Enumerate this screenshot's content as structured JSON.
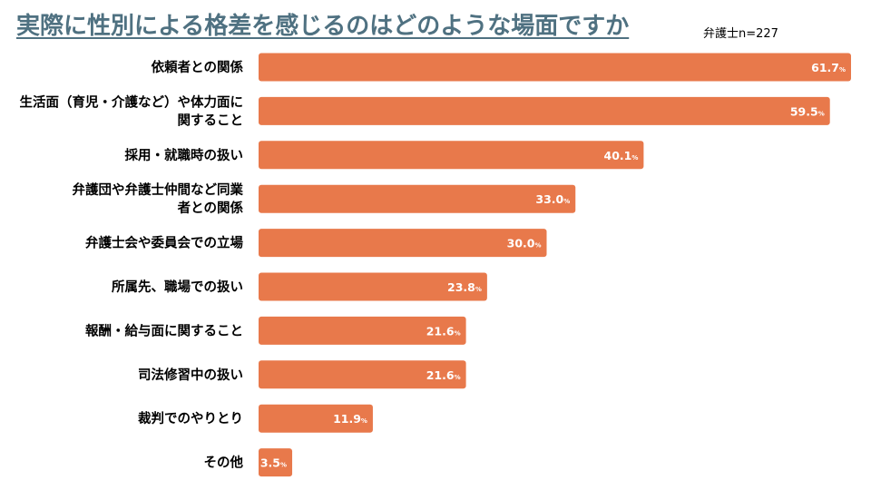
{
  "title": "実際に性別による格差を感じるのはどのような場面ですか",
  "sample_size": "弁護士n=227",
  "chart_data": {
    "type": "bar",
    "orientation": "horizontal",
    "categories": [
      [
        "依頼者との関係"
      ],
      [
        "生活面（育児・介護など）や体力面に",
        "関すること"
      ],
      [
        "採用・就職時の扱い"
      ],
      [
        "弁護団や弁護士仲間など同業",
        "者との関係"
      ],
      [
        "弁護士会や委員会での立場"
      ],
      [
        "所属先、職場での扱い"
      ],
      [
        "報酬・給与面に関すること"
      ],
      [
        "司法修習中の扱い"
      ],
      [
        "裁判でのやりとり"
      ],
      [
        "その他"
      ]
    ],
    "values": [
      61.7,
      59.5,
      40.1,
      33.0,
      30.0,
      23.8,
      21.6,
      21.6,
      11.9,
      3.5
    ],
    "value_labels": [
      "61.7",
      "59.5",
      "40.1",
      "33.0",
      "30.0",
      "23.8",
      "21.6",
      "21.6",
      "11.9",
      "3.5"
    ],
    "unit": "%",
    "xlim": [
      0,
      61.7
    ],
    "bar_color": "#e8794b",
    "grid": false
  }
}
